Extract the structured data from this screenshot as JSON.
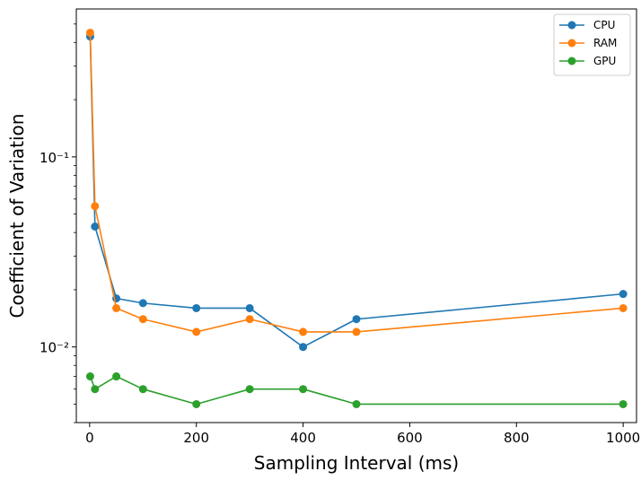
{
  "chart_data": {
    "type": "line",
    "title": "",
    "xlabel": "Sampling Interval (ms)",
    "ylabel": "Coefficient of Variation",
    "x_scale": "linear",
    "y_scale": "log",
    "xlim": [
      -25,
      1025
    ],
    "ylim": [
      0.004,
      0.6
    ],
    "x_ticks": [
      0,
      200,
      400,
      600,
      800,
      1000
    ],
    "x_tick_labels": [
      "0",
      "200",
      "400",
      "600",
      "800",
      "1000"
    ],
    "y_major_ticks": [
      0.01,
      0.1
    ],
    "y_tick_labels": [
      "10⁻²",
      "10⁻¹"
    ],
    "grid": false,
    "legend_position": "top-right",
    "x": [
      1,
      10,
      50,
      100,
      200,
      300,
      400,
      500,
      1000
    ],
    "series": [
      {
        "name": "CPU",
        "color": "#1f77b4",
        "values": [
          0.43,
          0.043,
          0.018,
          0.017,
          0.016,
          0.016,
          0.01,
          0.014,
          0.019
        ]
      },
      {
        "name": "RAM",
        "color": "#ff7f0e",
        "values": [
          0.45,
          0.055,
          0.016,
          0.014,
          0.012,
          0.014,
          0.012,
          0.012,
          0.016
        ]
      },
      {
        "name": "GPU",
        "color": "#2ca02c",
        "values": [
          0.007,
          0.006,
          0.007,
          0.006,
          0.005,
          0.006,
          0.006,
          0.005,
          0.005
        ]
      }
    ]
  }
}
